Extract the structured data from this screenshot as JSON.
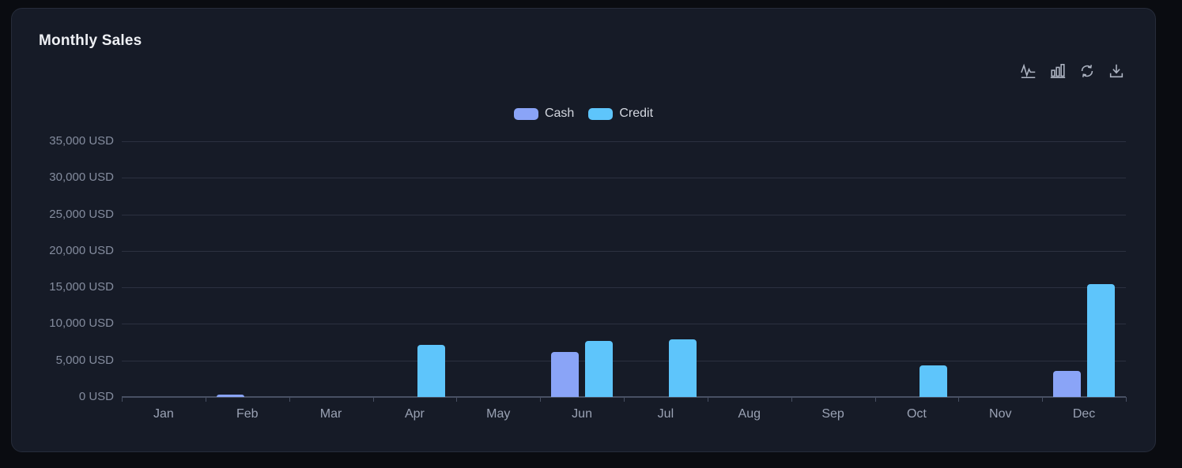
{
  "card": {
    "title": "Monthly Sales"
  },
  "toolbar": {
    "icons": [
      "line-chart",
      "bar-chart",
      "refresh",
      "download"
    ]
  },
  "chart_data": {
    "type": "bar",
    "title": "Monthly Sales",
    "categories": [
      "Jan",
      "Feb",
      "Mar",
      "Apr",
      "May",
      "Jun",
      "Jul",
      "Aug",
      "Sep",
      "Oct",
      "Nov",
      "Dec"
    ],
    "series": [
      {
        "name": "Cash",
        "color": "#8aa4f7",
        "values": [
          0,
          300,
          0,
          0,
          0,
          6200,
          0,
          0,
          0,
          0,
          0,
          3600
        ]
      },
      {
        "name": "Credit",
        "color": "#5ec5fb",
        "values": [
          0,
          0,
          0,
          7100,
          0,
          7700,
          7900,
          0,
          0,
          4300,
          0,
          15400
        ]
      }
    ],
    "yticks": [
      {
        "value": 0,
        "label": "0 USD"
      },
      {
        "value": 5000,
        "label": "5,000 USD"
      },
      {
        "value": 10000,
        "label": "10,000 USD"
      },
      {
        "value": 15000,
        "label": "15,000 USD"
      },
      {
        "value": 20000,
        "label": "20,000 USD"
      },
      {
        "value": 25000,
        "label": "25,000 USD"
      },
      {
        "value": 30000,
        "label": "30,000 USD"
      },
      {
        "value": 35000,
        "label": "35,000 USD"
      }
    ],
    "ylim": [
      0,
      35000
    ],
    "xlabel": "",
    "ylabel": "",
    "grid": true,
    "legend_position": "top-center",
    "background": "#161b27",
    "grid_color": "#2c3140",
    "axis_color": "#485063"
  }
}
